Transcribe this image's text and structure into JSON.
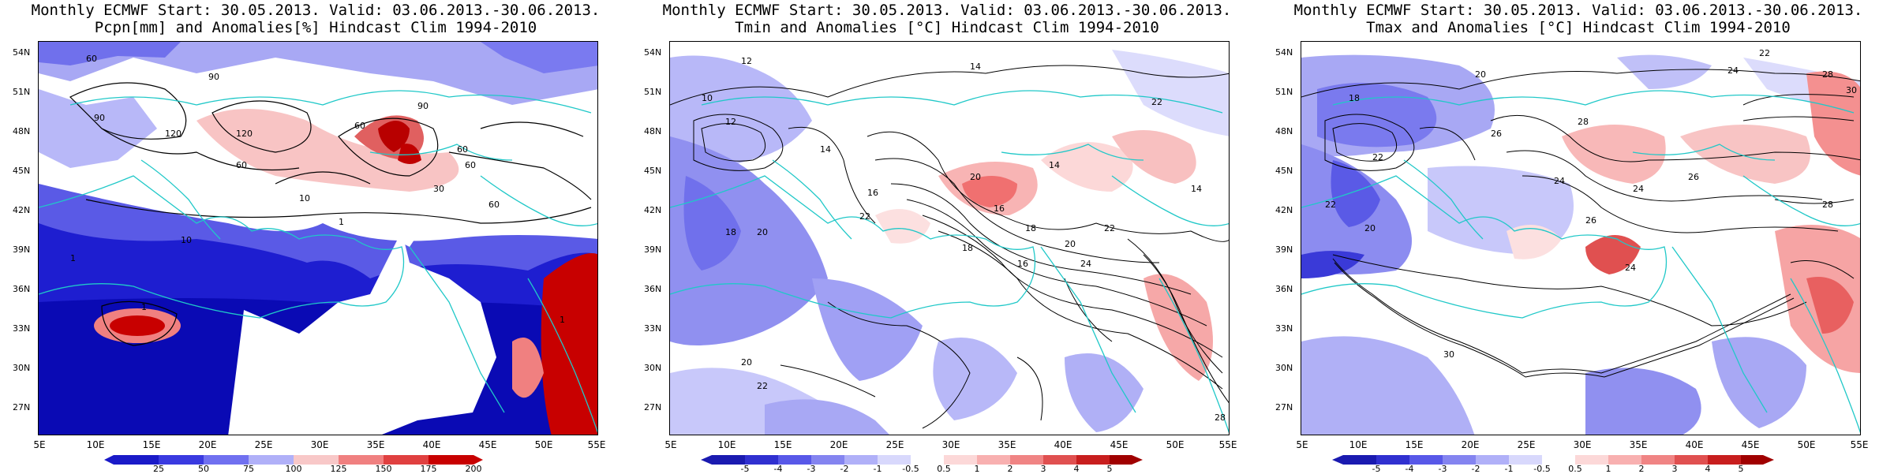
{
  "panels": [
    {
      "title_line1": "Monthly ECMWF Start: 30.05.2013. Valid: 03.06.2013.-30.06.2013.",
      "title_line2": "Pcpn[mm] and Anomalies[%] Hindcast Clim 1994-2010",
      "colorbar_ticks": [
        "25",
        "50",
        "75",
        "100",
        "125",
        "150",
        "175",
        "200"
      ],
      "colorbar_colors": [
        "#1a1ac8",
        "#3a3ae0",
        "#7070f0",
        "#b0b0f8",
        "#f8c8c8",
        "#f08080",
        "#e04040",
        "#c80000"
      ],
      "contour_labels": [
        "60",
        "90",
        "120",
        "90",
        "120",
        "60",
        "60",
        "90",
        "60",
        "30",
        "60",
        "10",
        "10",
        "1",
        "1",
        "1",
        "1",
        "60"
      ]
    },
    {
      "title_line1": "Monthly ECMWF Start: 30.05.2013. Valid: 03.06.2013.-30.06.2013.",
      "title_line2": "Tmin and Anomalies [°C] Hindcast Clim 1994-2010",
      "colorbar_ticks": [
        "-5",
        "-4",
        "-3",
        "-2",
        "-1",
        "-0.5",
        "0.5",
        "1",
        "2",
        "3",
        "4",
        "5"
      ],
      "colorbar_colors": [
        "#1a1ab0",
        "#3030d0",
        "#5858e8",
        "#8484f0",
        "#b0b0f8",
        "#d8d8fc",
        "#ffffff",
        "#fcd8d8",
        "#f8b0b0",
        "#f08484",
        "#e05050",
        "#c81e1e",
        "#a00000"
      ],
      "contour_labels": [
        "12",
        "14",
        "10",
        "12",
        "14",
        "16",
        "18",
        "20",
        "22",
        "20",
        "14",
        "16",
        "18",
        "20",
        "22",
        "24",
        "16",
        "18",
        "20",
        "22",
        "14",
        "22",
        "28"
      ]
    },
    {
      "title_line1": "Monthly ECMWF Start: 30.05.2013. Valid: 03.06.2013.-30.06.2013.",
      "title_line2": "Tmax and Anomalies [°C] Hindcast Clim 1994-2010",
      "colorbar_ticks": [
        "-5",
        "-4",
        "-3",
        "-2",
        "-1",
        "-0.5",
        "0.5",
        "1",
        "2",
        "3",
        "4",
        "5"
      ],
      "colorbar_colors": [
        "#1a1ab0",
        "#3030d0",
        "#5858e8",
        "#8484f0",
        "#b0b0f8",
        "#d8d8fc",
        "#ffffff",
        "#fcd8d8",
        "#f8b0b0",
        "#f08484",
        "#e05050",
        "#c81e1e",
        "#a00000"
      ],
      "contour_labels": [
        "22",
        "24",
        "28",
        "30",
        "20",
        "18",
        "26",
        "28",
        "22",
        "24",
        "26",
        "24",
        "26",
        "28",
        "24",
        "30",
        "20",
        "22"
      ]
    }
  ],
  "axes": {
    "lat_labels": [
      "54N",
      "51N",
      "48N",
      "45N",
      "42N",
      "39N",
      "36N",
      "33N",
      "30N",
      "27N"
    ],
    "lon_labels": [
      "5E",
      "10E",
      "15E",
      "20E",
      "25E",
      "30E",
      "35E",
      "40E",
      "45E",
      "50E",
      "55E"
    ]
  },
  "colors": {
    "coastline": "#20c8c8",
    "contour": "#000000"
  }
}
